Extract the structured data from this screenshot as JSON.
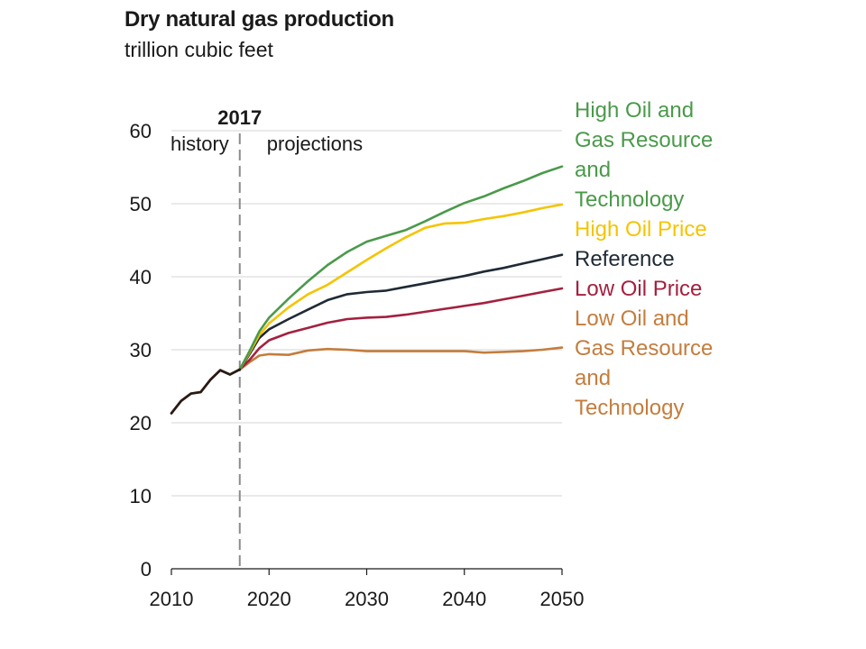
{
  "chart_data": {
    "type": "line",
    "title": "Dry natural gas production",
    "subtitle": "trillion cubic feet",
    "xlabel": "",
    "ylabel": "",
    "xlim": [
      2010,
      2050
    ],
    "ylim": [
      0,
      60
    ],
    "x_ticks": [
      "2010",
      "2020",
      "2030",
      "2040",
      "2050"
    ],
    "y_ticks": [
      "0",
      "10",
      "20",
      "30",
      "40",
      "50",
      "60"
    ],
    "grid": "horizontal",
    "divider": {
      "year": 2017,
      "label": "2017",
      "left_label": "history",
      "right_label": "projections"
    },
    "history": {
      "color": "#2b1a12",
      "points": [
        [
          2010,
          21.3
        ],
        [
          2011,
          23.0
        ],
        [
          2012,
          24.0
        ],
        [
          2013,
          24.2
        ],
        [
          2014,
          25.9
        ],
        [
          2015,
          27.2
        ],
        [
          2016,
          26.6
        ],
        [
          2017,
          27.3
        ]
      ]
    },
    "series": [
      {
        "name": "High Oil and Gas Resource and Technology",
        "label_lines": [
          "High Oil and",
          "Gas Resource",
          "and",
          "Technology"
        ],
        "color": "#4a9a4a",
        "points": [
          [
            2017,
            27.3
          ],
          [
            2018,
            29.8
          ],
          [
            2019,
            32.5
          ],
          [
            2020,
            34.4
          ],
          [
            2022,
            37.0
          ],
          [
            2024,
            39.4
          ],
          [
            2026,
            41.6
          ],
          [
            2028,
            43.4
          ],
          [
            2030,
            44.8
          ],
          [
            2032,
            45.6
          ],
          [
            2034,
            46.4
          ],
          [
            2036,
            47.6
          ],
          [
            2038,
            48.9
          ],
          [
            2040,
            50.1
          ],
          [
            2042,
            51.0
          ],
          [
            2044,
            52.1
          ],
          [
            2046,
            53.1
          ],
          [
            2048,
            54.2
          ],
          [
            2050,
            55.1
          ]
        ]
      },
      {
        "name": "High Oil Price",
        "label_lines": [
          "High Oil Price"
        ],
        "color": "#f5c400",
        "points": [
          [
            2017,
            27.3
          ],
          [
            2018,
            29.6
          ],
          [
            2019,
            32.0
          ],
          [
            2020,
            33.6
          ],
          [
            2022,
            35.8
          ],
          [
            2024,
            37.6
          ],
          [
            2026,
            38.9
          ],
          [
            2028,
            40.6
          ],
          [
            2030,
            42.3
          ],
          [
            2032,
            43.9
          ],
          [
            2034,
            45.4
          ],
          [
            2036,
            46.7
          ],
          [
            2038,
            47.3
          ],
          [
            2040,
            47.4
          ],
          [
            2042,
            47.9
          ],
          [
            2044,
            48.3
          ],
          [
            2046,
            48.8
          ],
          [
            2048,
            49.4
          ],
          [
            2050,
            49.9
          ]
        ]
      },
      {
        "name": "Reference",
        "label_lines": [
          "Reference"
        ],
        "color": "#1f2a36",
        "points": [
          [
            2017,
            27.3
          ],
          [
            2018,
            29.4
          ],
          [
            2019,
            31.6
          ],
          [
            2020,
            32.8
          ],
          [
            2022,
            34.2
          ],
          [
            2024,
            35.5
          ],
          [
            2026,
            36.8
          ],
          [
            2028,
            37.6
          ],
          [
            2030,
            37.9
          ],
          [
            2032,
            38.1
          ],
          [
            2034,
            38.6
          ],
          [
            2036,
            39.1
          ],
          [
            2038,
            39.6
          ],
          [
            2040,
            40.1
          ],
          [
            2042,
            40.7
          ],
          [
            2044,
            41.2
          ],
          [
            2046,
            41.8
          ],
          [
            2048,
            42.4
          ],
          [
            2050,
            43.0
          ]
        ]
      },
      {
        "name": "Low Oil Price",
        "label_lines": [
          "Low Oil Price"
        ],
        "color": "#a3213f",
        "points": [
          [
            2017,
            27.3
          ],
          [
            2018,
            28.6
          ],
          [
            2019,
            30.2
          ],
          [
            2020,
            31.3
          ],
          [
            2022,
            32.3
          ],
          [
            2024,
            33.0
          ],
          [
            2026,
            33.7
          ],
          [
            2028,
            34.2
          ],
          [
            2030,
            34.4
          ],
          [
            2032,
            34.5
          ],
          [
            2034,
            34.8
          ],
          [
            2036,
            35.2
          ],
          [
            2038,
            35.6
          ],
          [
            2040,
            36.0
          ],
          [
            2042,
            36.4
          ],
          [
            2044,
            36.9
          ],
          [
            2046,
            37.4
          ],
          [
            2048,
            37.9
          ],
          [
            2050,
            38.4
          ]
        ]
      },
      {
        "name": "Low Oil and Gas Resource and Technology",
        "label_lines": [
          "Low Oil and",
          "Gas Resource",
          "and",
          "Technology"
        ],
        "color": "#c47d3d",
        "points": [
          [
            2017,
            27.3
          ],
          [
            2018,
            28.3
          ],
          [
            2019,
            29.2
          ],
          [
            2020,
            29.4
          ],
          [
            2022,
            29.3
          ],
          [
            2024,
            29.9
          ],
          [
            2026,
            30.1
          ],
          [
            2028,
            30.0
          ],
          [
            2030,
            29.8
          ],
          [
            2032,
            29.8
          ],
          [
            2034,
            29.8
          ],
          [
            2036,
            29.8
          ],
          [
            2038,
            29.8
          ],
          [
            2040,
            29.8
          ],
          [
            2042,
            29.6
          ],
          [
            2044,
            29.7
          ],
          [
            2046,
            29.8
          ],
          [
            2048,
            30.0
          ],
          [
            2050,
            30.3
          ]
        ]
      }
    ]
  }
}
